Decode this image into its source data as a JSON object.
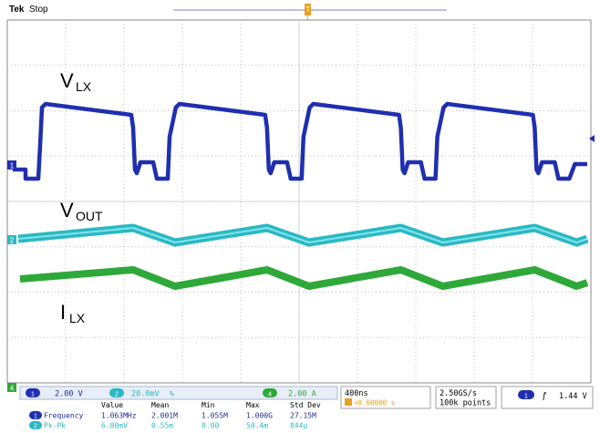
{
  "header": {
    "brand": "Tek",
    "status": "Stop",
    "trigger_marker": "T"
  },
  "channels": {
    "ch1": {
      "marker": "1",
      "color": "#1f2fb0"
    },
    "ch2": {
      "marker": "2",
      "color": "#2bb8c2"
    },
    "ch4": {
      "marker": "4",
      "color": "#2fa83a"
    }
  },
  "annotations": {
    "vlx_main": "V",
    "vlx_sub": "LX",
    "vout_main": "V",
    "vout_sub": "OUT",
    "ilx_main": "I",
    "ilx_sub": "LX"
  },
  "status_bar": {
    "ch1_scale": "2.00 V",
    "ch2_scale": "20.0mV",
    "ch2_bw": "%",
    "ch4_scale": "2.00 A",
    "timebase": "400ns",
    "trigger_pos": "+0.00000 s",
    "sample_rate": "2.50GS/s",
    "record_length": "100k points",
    "trigger_src": "1",
    "trigger_slope": "ƒ",
    "trigger_level": "1.44 V"
  },
  "measurements": {
    "headers": [
      "Value",
      "Mean",
      "Min",
      "Max",
      "Std Dev"
    ],
    "rows": [
      {
        "ch": "1",
        "name": "Frequency",
        "values": [
          "1.063MHz",
          "2.001M",
          "1.055M",
          "1.000G",
          "27.15M"
        ]
      },
      {
        "ch": "2",
        "name": "Pk-Pk",
        "values": [
          "6.80mV",
          "0.55m",
          "0.00",
          "50.4m",
          "844μ"
        ]
      }
    ]
  },
  "colors": {
    "grid_dots": "#bdbdbd",
    "frame": "#8a8a8a",
    "panel_bg": "#e8eef8",
    "text_blue": "#1d2f8f"
  }
}
